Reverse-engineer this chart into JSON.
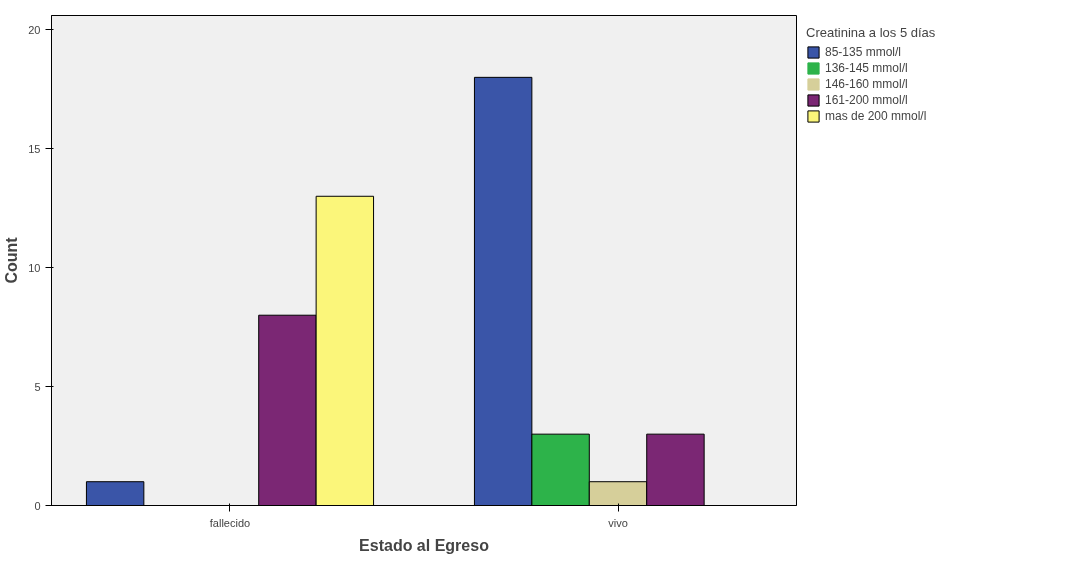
{
  "chart_data": {
    "type": "bar",
    "xlabel": "Estado al Egreso",
    "ylabel": "Count",
    "legend_title": "Creatinina a los 5 días",
    "categories": [
      "fallecido",
      "vivo"
    ],
    "series": [
      {
        "name": "85-135 mmol/l",
        "color": "#3a55a8",
        "values": [
          1,
          18
        ]
      },
      {
        "name": "136-145 mmol/l",
        "color": "#2db34a",
        "values": [
          0,
          3
        ]
      },
      {
        "name": "146-160 mmol/l",
        "color": "#d6cf9a",
        "values": [
          0,
          1
        ]
      },
      {
        "name": "161-200 mmol/l",
        "color": "#7b2774",
        "values": [
          8,
          3
        ]
      },
      {
        "name": "mas de 200 mmol/l",
        "color": "#fbf67a",
        "values": [
          13,
          0
        ]
      }
    ],
    "ylim": [
      0,
      20.6
    ],
    "yticks": [
      0,
      5,
      10,
      15,
      20
    ],
    "grid": false,
    "legend": "top right"
  }
}
